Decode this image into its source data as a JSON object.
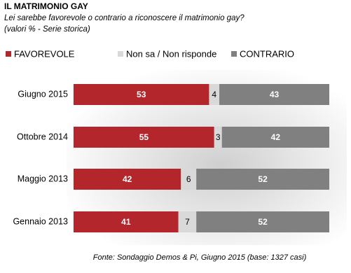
{
  "chart_data": {
    "type": "stacked-bar-horizontal",
    "title": "IL MATRIMONIO GAY",
    "subtitle": [
      "Lei sarebbe favorevole o contrario a riconoscere il matrimonio gay?",
      "(valori % - Serie storica)"
    ],
    "source": "Fonte: Sondaggio Demos & Pi, Giugno 2015 (base: 1327 casi)",
    "categories": [
      "Giugno 2015",
      "Ottobre 2014",
      "Maggio 2013",
      "Gennaio 2013"
    ],
    "series": [
      {
        "name": "FAVOREVOLE",
        "color": "#b3262b",
        "label_color": "#ffffff",
        "values": [
          53,
          55,
          42,
          41
        ]
      },
      {
        "name": "Non sa / Non risponde",
        "color": "#d9d9d9",
        "label_color": "#000000",
        "values": [
          4,
          3,
          6,
          7
        ]
      },
      {
        "name": "CONTRARIO",
        "color": "#808080",
        "label_color": "#ffffff",
        "values": [
          43,
          42,
          52,
          52
        ]
      }
    ],
    "xlim": [
      0,
      100
    ]
  }
}
